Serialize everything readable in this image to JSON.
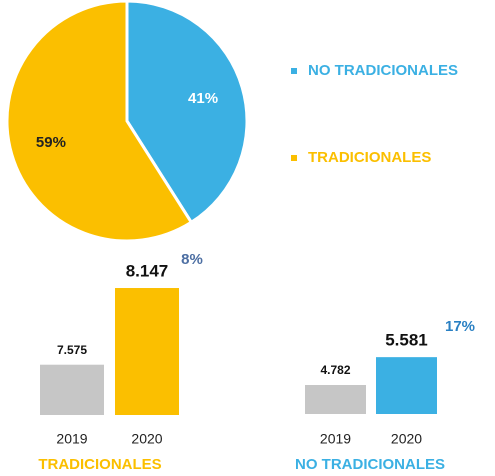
{
  "chart_data": [
    {
      "type": "pie",
      "categories": [
        "NO TRADICIONALES",
        "TRADICIONALES"
      ],
      "values": [
        41,
        59
      ],
      "value_labels": [
        "41%",
        "59%"
      ],
      "colors": [
        "#3bb0e3",
        "#fbbf00"
      ],
      "legend": "right"
    },
    {
      "type": "bar",
      "title": "TRADICIONALES",
      "title_color": "#fbbf00",
      "categories": [
        "2019",
        "2020"
      ],
      "values": [
        7575,
        8147
      ],
      "value_labels": [
        "7.575",
        "8.147"
      ],
      "colors": [
        "#c6c6c6",
        "#fbbf00"
      ],
      "annotation": "8%",
      "annotation_color": "#4d6fa3",
      "ylim": [
        7200,
        8300
      ]
    },
    {
      "type": "bar",
      "title": "NO TRADICIONALES",
      "title_color": "#3bb0e3",
      "categories": [
        "2019",
        "2020"
      ],
      "values": [
        4782,
        5581
      ],
      "value_labels": [
        "4.782",
        "5.581"
      ],
      "colors": [
        "#c6c6c6",
        "#3bb0e3"
      ],
      "annotation": "17%",
      "annotation_color": "#2a80c3",
      "ylim": [
        3950,
        5700
      ]
    }
  ]
}
